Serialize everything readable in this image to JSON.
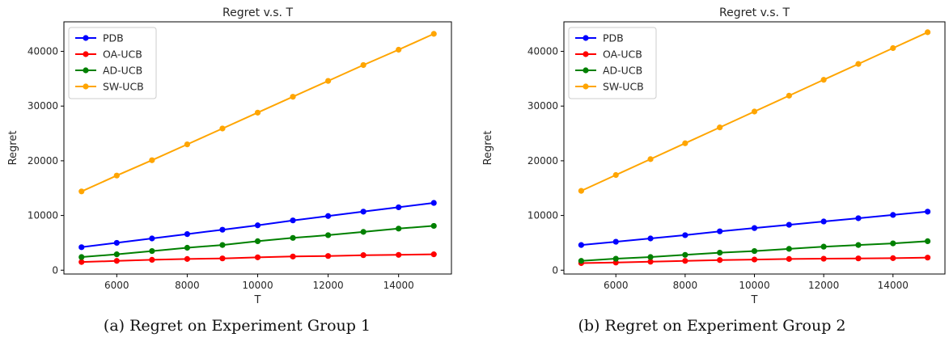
{
  "chart_data": [
    {
      "type": "line",
      "title": "Regret v.s. T",
      "xlabel": "T",
      "ylabel": "Regret",
      "x": [
        5000,
        6000,
        7000,
        8000,
        9000,
        10000,
        11000,
        12000,
        13000,
        14000,
        15000
      ],
      "xticks": [
        6000,
        8000,
        10000,
        12000,
        14000
      ],
      "yticks": [
        0,
        10000,
        20000,
        30000,
        40000
      ],
      "xlim": [
        4500,
        15500
      ],
      "ylim": [
        -700,
        45400
      ],
      "legend_position": "top-left",
      "grid": false,
      "series": [
        {
          "name": "PDB",
          "color": "#0000ff",
          "values": [
            4200,
            5000,
            5800,
            6600,
            7400,
            8200,
            9100,
            9900,
            10700,
            11500,
            12300
          ]
        },
        {
          "name": "OA-UCB",
          "color": "#ff0000",
          "values": [
            1500,
            1700,
            1900,
            2050,
            2150,
            2350,
            2500,
            2600,
            2750,
            2800,
            2900
          ]
        },
        {
          "name": "AD-UCB",
          "color": "#008000",
          "values": [
            2400,
            2900,
            3500,
            4100,
            4600,
            5300,
            5900,
            6400,
            7000,
            7600,
            8100
          ]
        },
        {
          "name": "SW-UCB",
          "color": "#ffa500",
          "values": [
            14400,
            17300,
            20100,
            23000,
            25900,
            28800,
            31700,
            34600,
            37500,
            40300,
            43200
          ]
        }
      ],
      "caption": "(a) Regret on Experiment Group 1"
    },
    {
      "type": "line",
      "title": "Regret v.s. T",
      "xlabel": "T",
      "ylabel": "Regret",
      "x": [
        5000,
        6000,
        7000,
        8000,
        9000,
        10000,
        11000,
        12000,
        13000,
        14000,
        15000
      ],
      "xticks": [
        6000,
        8000,
        10000,
        12000,
        14000
      ],
      "yticks": [
        0,
        10000,
        20000,
        30000,
        40000
      ],
      "xlim": [
        4500,
        15500
      ],
      "ylim": [
        -700,
        45400
      ],
      "legend_position": "top-left",
      "grid": false,
      "series": [
        {
          "name": "PDB",
          "color": "#0000ff",
          "values": [
            4600,
            5200,
            5800,
            6400,
            7100,
            7700,
            8300,
            8900,
            9500,
            10100,
            10700
          ]
        },
        {
          "name": "OA-UCB",
          "color": "#ff0000",
          "values": [
            1300,
            1400,
            1550,
            1700,
            1850,
            1950,
            2050,
            2100,
            2150,
            2200,
            2300
          ]
        },
        {
          "name": "AD-UCB",
          "color": "#008000",
          "values": [
            1700,
            2100,
            2400,
            2800,
            3200,
            3500,
            3900,
            4300,
            4600,
            4900,
            5300
          ]
        },
        {
          "name": "SW-UCB",
          "color": "#ffa500",
          "values": [
            14500,
            17400,
            20300,
            23200,
            26100,
            29000,
            31900,
            34800,
            37700,
            40600,
            43500
          ]
        }
      ],
      "caption": "(b) Regret on Experiment Group 2"
    }
  ]
}
